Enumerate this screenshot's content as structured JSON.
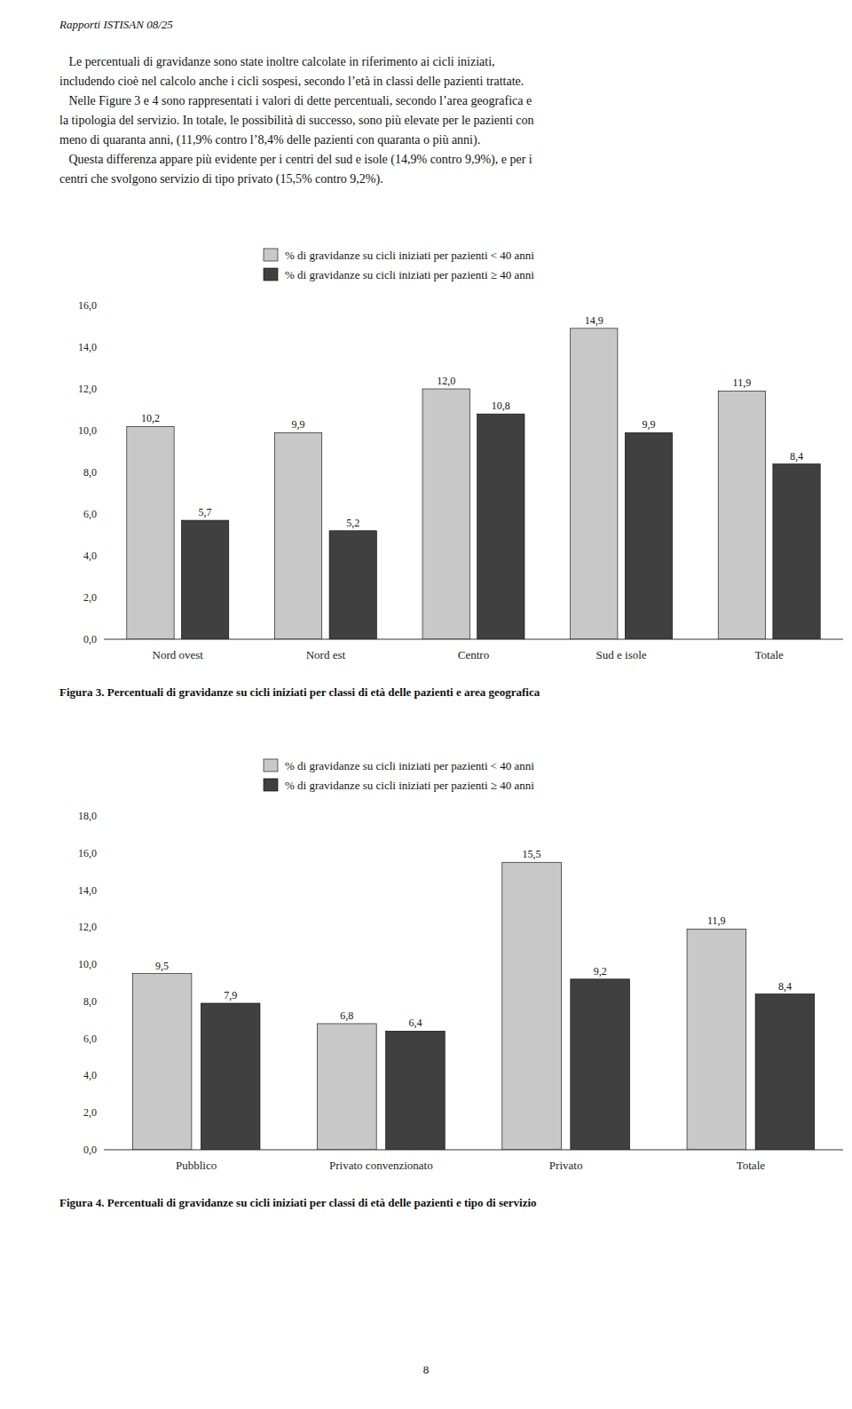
{
  "header": "Rapporti ISTISAN 08/25",
  "body_lines": [
    "   Le percentuali di gravidanze sono state inoltre calcolate in riferimento ai cicli iniziati,",
    "includendo cioè nel calcolo anche i cicli sospesi, secondo l’età in classi delle pazienti trattate.",
    "   Nelle Figure 3 e 4 sono rappresentati i valori di dette percentuali, secondo l’area geografica e",
    "la tipologia del servizio. In totale, le possibilità di successo, sono più elevate per le pazienti con",
    "meno di quaranta anni, (11,9% contro l’8,4% delle pazienti con quaranta o più anni).",
    "   Questa differenza appare più evidente per i centri del sud e isole (14,9% contro 9,9%), e per i",
    "centri che svolgono servizio di tipo privato (15,5% contro 9,2%)."
  ],
  "chart_data": [
    {
      "type": "bar",
      "title": "Figura 3. Percentuali di gravidanze su cicli iniziati per classi di età delle pazienti e area geografica",
      "categories": [
        "Nord ovest",
        "Nord est",
        "Centro",
        "Sud e isole",
        "Totale"
      ],
      "series": [
        {
          "name": "% di gravidanze su cicli iniziati per pazienti < 40 anni",
          "color": "#c8c8c8",
          "values": [
            10.2,
            9.9,
            12.0,
            14.9,
            11.9
          ],
          "value_labels": [
            "10,2",
            "9,9",
            "12,0",
            "14,9",
            "11,9"
          ]
        },
        {
          "name": "% di gravidanze su cicli iniziati per pazienti ≥ 40 anni",
          "color": "#404040",
          "values": [
            5.7,
            5.2,
            10.8,
            9.9,
            8.4
          ],
          "value_labels": [
            "5,7",
            "5,2",
            "10,8",
            "9,9",
            "8,4"
          ]
        }
      ],
      "ylim": [
        0,
        16.0
      ],
      "yticks": [
        {
          "value": 0.0,
          "label": "0,0"
        },
        {
          "value": 2.0,
          "label": "2,0"
        },
        {
          "value": 4.0,
          "label": "4,0"
        },
        {
          "value": 6.0,
          "label": "6,0"
        },
        {
          "value": 8.0,
          "label": "8,0"
        },
        {
          "value": 10.0,
          "label": "10,0"
        },
        {
          "value": 12.0,
          "label": "12,0"
        },
        {
          "value": 14.0,
          "label": "14,0"
        },
        {
          "value": 16.0,
          "label": "16,0"
        }
      ],
      "grid": false,
      "legend": "top",
      "data_labels": true
    },
    {
      "type": "bar",
      "title": "Figura 4. Percentuali di gravidanze su cicli iniziati per classi di età delle pazienti e tipo di servizio",
      "categories": [
        "Pubblico",
        "Privato convenzionato",
        "Privato",
        "Totale"
      ],
      "series": [
        {
          "name": "% di gravidanze su cicli iniziati per pazienti < 40 anni",
          "color": "#c8c8c8",
          "values": [
            9.5,
            6.8,
            15.5,
            11.9
          ],
          "value_labels": [
            "9,5",
            "6,8",
            "15,5",
            "11,9"
          ]
        },
        {
          "name": "% di gravidanze su cicli iniziati per pazienti ≥ 40 anni",
          "color": "#404040",
          "values": [
            7.9,
            6.4,
            9.2,
            8.4
          ],
          "value_labels": [
            "7,9",
            "6,4",
            "9,2",
            "8,4"
          ]
        }
      ],
      "ylim": [
        0,
        18.0
      ],
      "yticks": [
        {
          "value": 0.0,
          "label": "0,0"
        },
        {
          "value": 2.0,
          "label": "2,0"
        },
        {
          "value": 4.0,
          "label": "4,0"
        },
        {
          "value": 6.0,
          "label": "6,0"
        },
        {
          "value": 8.0,
          "label": "8,0"
        },
        {
          "value": 10.0,
          "label": "10,0"
        },
        {
          "value": 12.0,
          "label": "12,0"
        },
        {
          "value": 14.0,
          "label": "14,0"
        },
        {
          "value": 16.0,
          "label": "16,0"
        },
        {
          "value": 18.0,
          "label": "18,0"
        }
      ],
      "grid": false,
      "legend": "top",
      "data_labels": true
    }
  ],
  "page_number": "8"
}
